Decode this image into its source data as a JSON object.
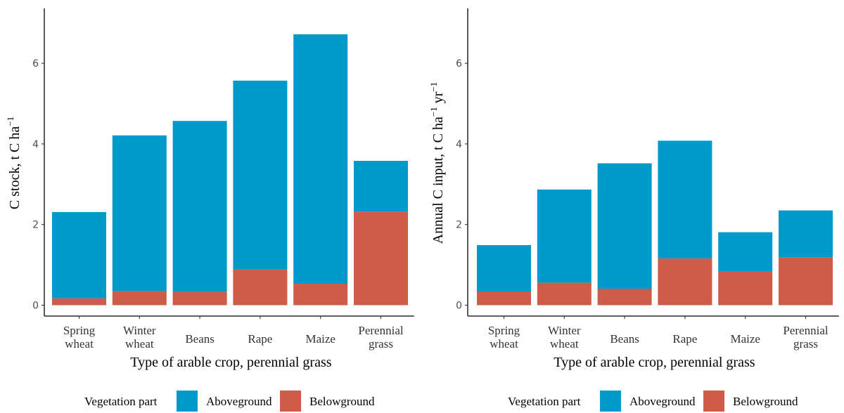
{
  "chart_data": [
    {
      "type": "bar",
      "stacked": true,
      "categories": [
        [
          "Spring",
          "wheat"
        ],
        [
          "Winter",
          "wheat"
        ],
        [
          "Beans"
        ],
        [
          "Rape"
        ],
        [
          "Maize"
        ],
        [
          "Perennial",
          "grass"
        ]
      ],
      "series": [
        {
          "name": "Belowground",
          "color": "#cd5c48",
          "values": [
            0.17,
            0.35,
            0.33,
            0.89,
            0.54,
            2.32
          ]
        },
        {
          "name": "Aboveground",
          "color": "#0099cc",
          "values": [
            2.14,
            3.86,
            4.24,
            4.68,
            6.18,
            1.26
          ]
        }
      ],
      "yticks": [
        0,
        2,
        4,
        6
      ],
      "ylim": [
        0,
        7.25
      ],
      "xlabel": "Type of arable crop, perennial grass",
      "ylabel_main": "C stock, t C ha",
      "ylabel_sup": "−1",
      "legend_title": "Vegetation part",
      "legend_items": [
        "Aboveground",
        "Belowground"
      ],
      "legend_colors": [
        "#0099cc",
        "#cd5c48"
      ],
      "legend_position": "bottom",
      "grid": false
    },
    {
      "type": "bar",
      "stacked": true,
      "categories": [
        [
          "Spring",
          "wheat"
        ],
        [
          "Winter",
          "wheat"
        ],
        [
          "Beans"
        ],
        [
          "Rape"
        ],
        [
          "Maize"
        ],
        [
          "Perennial",
          "grass"
        ]
      ],
      "series": [
        {
          "name": "Belowground",
          "color": "#cd5c48",
          "values": [
            0.34,
            0.56,
            0.41,
            1.16,
            0.83,
            1.19
          ]
        },
        {
          "name": "Aboveground",
          "color": "#0099cc",
          "values": [
            1.15,
            2.31,
            3.11,
            2.92,
            0.98,
            1.16
          ]
        }
      ],
      "yticks": [
        0,
        2,
        4,
        6
      ],
      "ylim": [
        0,
        7.25
      ],
      "xlabel": "Type of arable crop, perennial grass",
      "ylabel_main": "Annual C input, t C ha",
      "ylabel_sup": "−1",
      "ylabel_tail": " yr",
      "ylabel_sup2": "−1",
      "legend_title": "Vegetation part",
      "legend_items": [
        "Aboveground",
        "Belowground"
      ],
      "legend_colors": [
        "#0099cc",
        "#cd5c48"
      ],
      "legend_position": "bottom",
      "grid": false
    }
  ]
}
